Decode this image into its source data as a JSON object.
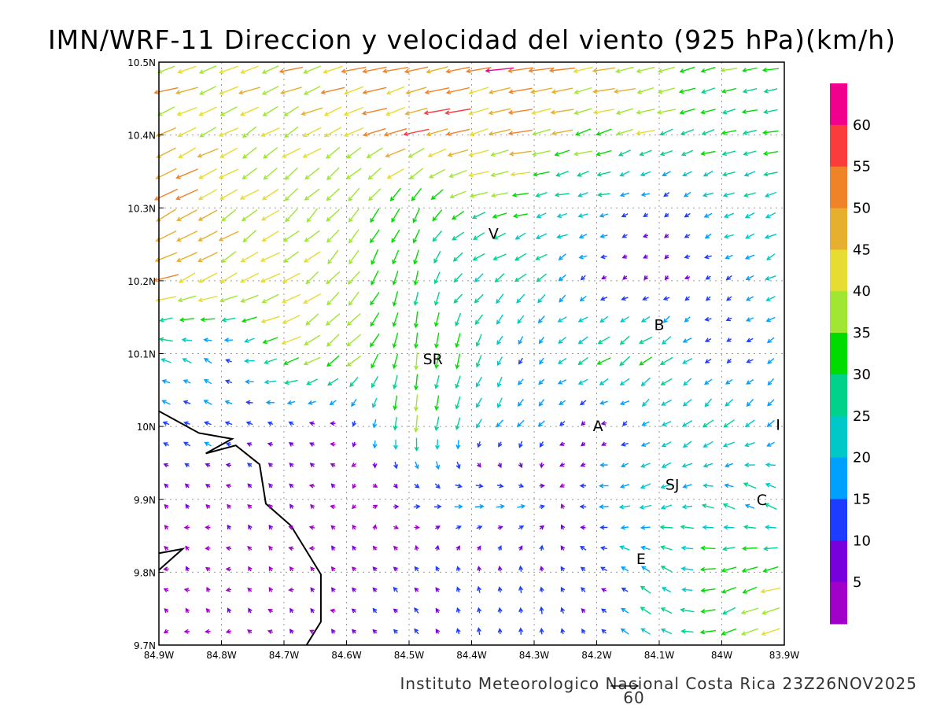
{
  "chart_data": {
    "type": "vector-field",
    "title": "IMN/WRF-11 Direccion y velocidad del viento (925 hPa)(km/h)",
    "footer": "Instituto Meteorologico Nacional Costa Rica  23Z26NOV2025",
    "reference_vector": {
      "label": "60",
      "speed": 60
    },
    "xlim": [
      -84.9,
      -83.9
    ],
    "ylim": [
      9.7,
      10.5
    ],
    "grid": true,
    "x_ticks": [
      "84.9W",
      "84.8W",
      "84.7W",
      "84.6W",
      "84.5W",
      "84.4W",
      "84.3W",
      "84.2W",
      "84.1W",
      "84W",
      "83.9W"
    ],
    "y_ticks": [
      "10.5N",
      "10.4N",
      "10.3N",
      "10.2N",
      "10.1N",
      "10N",
      "9.9N",
      "9.8N",
      "9.7N"
    ],
    "colorbar": {
      "labels": [
        "60",
        "55",
        "50",
        "45",
        "40",
        "35",
        "30",
        "25",
        "20",
        "15",
        "10",
        "5"
      ],
      "levels": [
        5,
        10,
        15,
        20,
        25,
        30,
        35,
        40,
        45,
        50,
        55,
        60
      ],
      "colors": [
        "#a000c8",
        "#7800dc",
        "#1e3cff",
        "#00a0ff",
        "#00c8c8",
        "#00d28c",
        "#00dc00",
        "#a0e632",
        "#e6dc32",
        "#e6af2d",
        "#f08228",
        "#fa3c3c",
        "#f0008c"
      ]
    },
    "wind_grid": {
      "units": "km/h",
      "lats": [
        10.5,
        10.4,
        10.3,
        10.2,
        10.1,
        10.0,
        9.9,
        9.8,
        9.7
      ],
      "lons": [
        -84.9,
        -84.8,
        -84.7,
        -84.6,
        -84.5,
        -84.4,
        -84.3,
        -84.2,
        -84.1,
        -84.0,
        -83.9
      ],
      "uv": [
        [
          [
            -45,
            -10
          ],
          [
            -45,
            -12
          ],
          [
            -42,
            -12
          ],
          [
            -45,
            -12
          ],
          [
            -50,
            -10
          ],
          [
            -52,
            -10
          ],
          [
            -50,
            -8
          ],
          [
            -45,
            -8
          ],
          [
            -38,
            -10
          ],
          [
            -30,
            -8
          ],
          [
            -28,
            -6
          ]
        ],
        [
          [
            -42,
            -18
          ],
          [
            -35,
            -20
          ],
          [
            -35,
            -20
          ],
          [
            -40,
            -18
          ],
          [
            -45,
            -15
          ],
          [
            -45,
            -12
          ],
          [
            -42,
            -10
          ],
          [
            -38,
            -10
          ],
          [
            -32,
            -10
          ],
          [
            -28,
            -8
          ],
          [
            -28,
            -6
          ]
        ],
        [
          [
            -50,
            -25
          ],
          [
            -35,
            -22
          ],
          [
            -30,
            -25
          ],
          [
            -22,
            -28
          ],
          [
            -15,
            -30
          ],
          [
            -35,
            -10
          ],
          [
            -25,
            -5
          ],
          [
            -20,
            -5
          ],
          [
            -8,
            -4
          ],
          [
            -20,
            -8
          ],
          [
            -25,
            -8
          ]
        ],
        [
          [
            -45,
            -15
          ],
          [
            -40,
            -20
          ],
          [
            -35,
            -20
          ],
          [
            -25,
            -28
          ],
          [
            -5,
            -30
          ],
          [
            -20,
            -15
          ],
          [
            -20,
            -20
          ],
          [
            -8,
            -3
          ],
          [
            -5,
            -3
          ],
          [
            -12,
            -5
          ],
          [
            -20,
            -12
          ]
        ],
        [
          [
            -20,
            5
          ],
          [
            -12,
            10
          ],
          [
            -35,
            -15
          ],
          [
            -30,
            -25
          ],
          [
            -2,
            -35
          ],
          [
            -10,
            -28
          ],
          [
            -5,
            -12
          ],
          [
            -30,
            -15
          ],
          [
            -25,
            -20
          ],
          [
            -8,
            -3
          ],
          [
            -15,
            -12
          ]
        ],
        [
          [
            -12,
            5
          ],
          [
            -15,
            5
          ],
          [
            -8,
            5
          ],
          [
            -3,
            -4
          ],
          [
            -3,
            -35
          ],
          [
            -10,
            -20
          ],
          [
            -15,
            -12
          ],
          [
            -5,
            -2
          ],
          [
            -15,
            -10
          ],
          [
            -20,
            -20
          ],
          [
            -15,
            -10
          ]
        ],
        [
          [
            -3,
            3
          ],
          [
            -3,
            3
          ],
          [
            -3,
            3
          ],
          [
            -3,
            2
          ],
          [
            12,
            -2
          ],
          [
            20,
            0
          ],
          [
            15,
            0
          ],
          [
            -20,
            0
          ],
          [
            -25,
            -10
          ],
          [
            -20,
            10
          ],
          [
            -25,
            15
          ]
        ],
        [
          [
            -2,
            2
          ],
          [
            -2,
            2
          ],
          [
            -2,
            2
          ],
          [
            -3,
            3
          ],
          [
            -8,
            8
          ],
          [
            -3,
            10
          ],
          [
            -2,
            12
          ],
          [
            -10,
            5
          ],
          [
            -20,
            15
          ],
          [
            -30,
            -10
          ],
          [
            -35,
            -10
          ]
        ],
        [
          [
            -2,
            2
          ],
          [
            -2,
            2
          ],
          [
            -3,
            3
          ],
          [
            -5,
            5
          ],
          [
            -8,
            8
          ],
          [
            -2,
            12
          ],
          [
            0,
            15
          ],
          [
            -5,
            5
          ],
          [
            -25,
            15
          ],
          [
            -30,
            -12
          ],
          [
            -40,
            -15
          ]
        ]
      ]
    },
    "coastline": [
      [
        [
          -84.9,
          10.021
        ],
        [
          -84.836,
          9.991
        ],
        [
          -84.783,
          9.983
        ],
        [
          -84.825,
          9.963
        ],
        [
          -84.777,
          9.974
        ],
        [
          -84.739,
          9.948
        ],
        [
          -84.729,
          9.894
        ],
        [
          -84.689,
          9.864
        ],
        [
          -84.641,
          9.797
        ],
        [
          -84.641,
          9.732
        ],
        [
          -84.664,
          9.7
        ]
      ],
      [
        [
          -84.9,
          9.826
        ],
        [
          -84.862,
          9.832
        ],
        [
          -84.9,
          9.803
        ]
      ]
    ],
    "places": [
      {
        "label": "V",
        "lon": -84.365,
        "lat": 10.265
      },
      {
        "label": "SR",
        "lon": -84.462,
        "lat": 10.093
      },
      {
        "label": "B",
        "lon": -84.1,
        "lat": 10.14
      },
      {
        "label": "A",
        "lon": -84.198,
        "lat": 10.001
      },
      {
        "label": "SJ",
        "lon": -84.079,
        "lat": 9.921
      },
      {
        "label": "C",
        "lon": -83.936,
        "lat": 9.9
      },
      {
        "label": "E",
        "lon": -84.129,
        "lat": 9.819
      },
      {
        "label": "I",
        "lon": -83.91,
        "lat": 10.003
      }
    ]
  }
}
